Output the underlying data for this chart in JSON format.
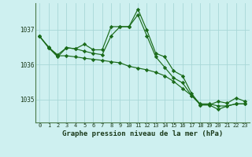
{
  "title": "Graphe pression niveau de la mer (hPa)",
  "background_color": "#cef0f0",
  "grid_color": "#a8d8d8",
  "line_color": "#1a6b1a",
  "marker_color": "#1a6b1a",
  "xlim": [
    -0.5,
    23.5
  ],
  "ylim": [
    1034.35,
    1037.75
  ],
  "yticks": [
    1035,
    1036,
    1037
  ],
  "xticks": [
    0,
    1,
    2,
    3,
    4,
    5,
    6,
    7,
    8,
    9,
    10,
    11,
    12,
    13,
    14,
    15,
    16,
    17,
    18,
    19,
    20,
    21,
    22,
    23
  ],
  "series": {
    "line1": [
      1036.8,
      1036.5,
      1036.25,
      1036.25,
      1036.22,
      1036.18,
      1036.15,
      1036.12,
      1036.08,
      1036.05,
      1035.95,
      1035.9,
      1035.85,
      1035.78,
      1035.68,
      1035.52,
      1035.32,
      1035.12,
      1034.88,
      1034.88,
      1034.82,
      1034.82,
      1034.88,
      1034.88
    ],
    "line2": [
      1036.8,
      1036.48,
      1036.28,
      1036.48,
      1036.45,
      1036.38,
      1036.32,
      1036.28,
      1036.82,
      1037.08,
      1037.08,
      1037.42,
      1036.82,
      1036.22,
      1035.92,
      1035.62,
      1035.48,
      1035.12,
      1034.85,
      1034.85,
      1034.95,
      1034.9,
      1035.05,
      1034.95
    ],
    "line3": [
      1036.8,
      1036.48,
      1036.22,
      1036.48,
      1036.45,
      1036.58,
      1036.42,
      1036.42,
      1037.08,
      1037.08,
      1037.08,
      1037.58,
      1036.98,
      1036.32,
      1036.22,
      1035.82,
      1035.68,
      1035.18,
      1034.85,
      1034.85,
      1034.72,
      1034.82,
      1034.88,
      1034.88
    ]
  },
  "label_fontsize": 5.0,
  "ylabel_fontsize": 5.5,
  "title_fontsize": 6.5
}
